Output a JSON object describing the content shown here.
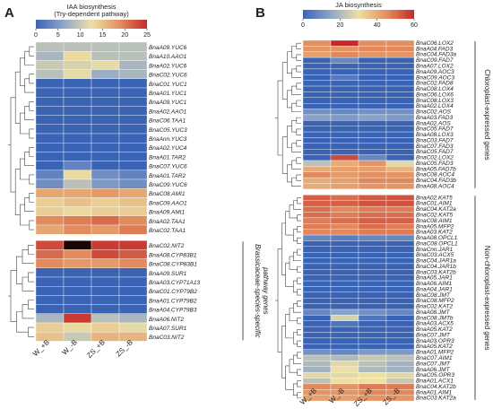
{
  "chart_data": [
    {
      "type": "heatmap",
      "panel_label": "A",
      "title": "IAA biosynthesis",
      "subtitle": "(Try-dependent pathway)",
      "columns": [
        "W_+B",
        "W_-B",
        "ZS_+B",
        "ZS_-B"
      ],
      "color_scale": {
        "min": 0,
        "max": 25,
        "ticks": [
          "0",
          "5",
          "10",
          "15",
          "20",
          "25"
        ],
        "colors": [
          "#3b63b4",
          "#8fa6c8",
          "#ece0a5",
          "#e39060",
          "#c42a2a"
        ]
      },
      "clusters": [
        {
          "side_label": "",
          "rows": [
            {
              "gene": "BnaA09.YUC6",
              "values": [
                9,
                9,
                9,
                9
              ]
            },
            {
              "gene": "BnaA10.AAO1",
              "values": [
                8,
                13,
                9,
                9
              ]
            },
            {
              "gene": "BnaA02.YUC6",
              "values": [
                10,
                11,
                12,
                8
              ]
            },
            {
              "gene": "BnaC02.YUC6",
              "values": [
                9,
                12,
                7,
                8
              ]
            },
            {
              "gene": "BnaC01.YUC1",
              "values": [
                0,
                0,
                0,
                0
              ]
            },
            {
              "gene": "BnaA01.YUC1",
              "values": [
                0,
                0,
                0,
                0
              ]
            },
            {
              "gene": "BnaA09.YUC1",
              "values": [
                0,
                0,
                0,
                0
              ]
            },
            {
              "gene": "BnaA02.AAO1",
              "values": [
                0,
                0,
                0,
                0
              ]
            },
            {
              "gene": "BnaC06.TAA1",
              "values": [
                0,
                0,
                0,
                0
              ]
            },
            {
              "gene": "BnaC05.YUC3",
              "values": [
                0,
                0,
                0,
                0
              ]
            },
            {
              "gene": "BnaAnn.YUC3",
              "values": [
                0,
                0,
                0,
                0
              ]
            },
            {
              "gene": "BnaA02.YUC4",
              "values": [
                0,
                0,
                0,
                0
              ]
            },
            {
              "gene": "BnaA01.TAR2",
              "values": [
                0,
                0,
                0,
                0
              ]
            },
            {
              "gene": "BnaC07.YUC6",
              "values": [
                0,
                3,
                0,
                0
              ]
            },
            {
              "gene": "BnaA01.TAR2",
              "values": [
                3,
                13,
                4,
                3
              ]
            },
            {
              "gene": "BnaC09.YUC6",
              "values": [
                4,
                9,
                5,
                4
              ]
            },
            {
              "gene": "BnaC08.AMI1",
              "values": [
                17,
                17,
                18,
                17
              ]
            },
            {
              "gene": "BnaC09.AAO1",
              "values": [
                14,
                15,
                14,
                15
              ]
            },
            {
              "gene": "BnaA09.AMI1",
              "values": [
                14,
                13,
                14,
                14
              ]
            },
            {
              "gene": "BnaA02.TAA1",
              "values": [
                19,
                20,
                21,
                19
              ]
            },
            {
              "gene": "BnaC02.TAA1",
              "values": [
                17,
                19,
                18,
                20
              ]
            }
          ]
        },
        {
          "side_label": "Brassicaceae-species-specific pathway genes",
          "rows": [
            {
              "gene": "BnaC02.NIT2",
              "values": [
                23,
                28,
                24,
                24
              ]
            },
            {
              "gene": "BnaA08.CYP83B1",
              "values": [
                21,
                19,
                23,
                22
              ]
            },
            {
              "gene": "BnaC08.CYP83B1",
              "values": [
                19,
                18,
                18,
                19
              ]
            },
            {
              "gene": "BnaA09.SUR1",
              "values": [
                0,
                0,
                0,
                0
              ]
            },
            {
              "gene": "BnaA03.CYP71A13",
              "values": [
                0,
                0,
                0,
                0
              ]
            },
            {
              "gene": "BnaC01.CYP79B2",
              "values": [
                0,
                0,
                0,
                0
              ]
            },
            {
              "gene": "BnaA01.CYP79B2",
              "values": [
                0,
                0,
                0,
                0
              ]
            },
            {
              "gene": "BnaA04.CYP79B3",
              "values": [
                0,
                0,
                0,
                0
              ]
            },
            {
              "gene": "BnaA06.NIT2",
              "values": [
                8,
                24,
                9,
                8
              ]
            },
            {
              "gene": "BnaA07.SUR1",
              "values": [
                14,
                13,
                14,
                12
              ]
            },
            {
              "gene": "BnaC03.NIT2",
              "values": [
                15,
                10,
                16,
                16
              ]
            }
          ]
        }
      ]
    },
    {
      "type": "heatmap",
      "panel_label": "B",
      "title": "JA biosynthesis",
      "columns": [
        "W_+B",
        "W_-B",
        "ZS_+B",
        "ZS_-B"
      ],
      "color_scale": {
        "min": 0,
        "max": 60,
        "ticks": [
          "0",
          "20",
          "40",
          "60"
        ],
        "colors": [
          "#3b63b4",
          "#8fa6c8",
          "#ece0a5",
          "#e39060",
          "#c42a2a"
        ]
      },
      "clusters": [
        {
          "side_label": "Chloroplast-expressed genes",
          "rows": [
            {
              "gene": "BnaC06.LOX2",
              "values": [
                45,
                60,
                45,
                45
              ]
            },
            {
              "gene": "BnaA04.FAD3",
              "values": [
                44,
                44,
                46,
                46
              ]
            },
            {
              "gene": "BnaC04.FAD3a",
              "values": [
                42,
                46,
                44,
                44
              ]
            },
            {
              "gene": "BnaC09.FAD7",
              "values": [
                0,
                8,
                0,
                0
              ]
            },
            {
              "gene": "BnaA07.LOX2",
              "values": [
                0,
                0,
                0,
                0
              ]
            },
            {
              "gene": "BnaA09.AOC3",
              "values": [
                0,
                0,
                0,
                0
              ]
            },
            {
              "gene": "BnaC09.AOC3",
              "values": [
                0,
                5,
                0,
                0
              ]
            },
            {
              "gene": "BnaC02.FAD8",
              "values": [
                0,
                0,
                0,
                0
              ]
            },
            {
              "gene": "BnaC08.LOX4",
              "values": [
                0,
                0,
                0,
                0
              ]
            },
            {
              "gene": "BnaC06.LOX6",
              "values": [
                0,
                0,
                0,
                0
              ]
            },
            {
              "gene": "BnaC08.LOX3",
              "values": [
                0,
                0,
                0,
                0
              ]
            },
            {
              "gene": "BnaA02.LOX4",
              "values": [
                0,
                0,
                0,
                0
              ]
            },
            {
              "gene": "BnaC02.AOS",
              "values": [
                10,
                8,
                10,
                10
              ]
            },
            {
              "gene": "BnaA03.FAD3",
              "values": [
                14,
                12,
                14,
                12
              ]
            },
            {
              "gene": "BnaA02.AOS",
              "values": [
                0,
                0,
                0,
                0
              ]
            },
            {
              "gene": "BnaC05.FAD7",
              "values": [
                0,
                0,
                0,
                0
              ]
            },
            {
              "gene": "BnaA08.LOX3",
              "values": [
                0,
                0,
                0,
                0
              ]
            },
            {
              "gene": "BnaC03.FAD7",
              "values": [
                0,
                0,
                0,
                0
              ]
            },
            {
              "gene": "BnaC07.FAD3",
              "values": [
                0,
                0,
                0,
                0
              ]
            },
            {
              "gene": "BnaC05.FAD7",
              "values": [
                0,
                0,
                0,
                0
              ]
            },
            {
              "gene": "BnaC02.LOX2",
              "values": [
                0,
                55,
                8,
                0
              ]
            },
            {
              "gene": "BnaC05.FAD3",
              "values": [
                22,
                40,
                44,
                28
              ]
            },
            {
              "gene": "BnaA05.FAD7b",
              "values": [
                40,
                42,
                42,
                38
              ]
            },
            {
              "gene": "BnaC08.AOC4",
              "values": [
                46,
                43,
                45,
                44
              ]
            },
            {
              "gene": "BnaC04.FAD3b",
              "values": [
                40,
                42,
                46,
                46
              ]
            },
            {
              "gene": "BnaA08.AOC4",
              "values": [
                40,
                42,
                44,
                44
              ]
            }
          ]
        },
        {
          "side_label": "Non-chloroplast-expressed genes",
          "rows": [
            {
              "gene": "BnaA02.KAT5",
              "values": [
                52,
                50,
                53,
                54
              ]
            },
            {
              "gene": "BnaC01.AIM1",
              "values": [
                52,
                52,
                54,
                54
              ]
            },
            {
              "gene": "BnaC04.KAT2a",
              "values": [
                50,
                46,
                48,
                48
              ]
            },
            {
              "gene": "BnaC02.KAT5",
              "values": [
                50,
                48,
                50,
                50
              ]
            },
            {
              "gene": "BnaC08.AIM1",
              "values": [
                48,
                50,
                52,
                52
              ]
            },
            {
              "gene": "BnaA05.MFP2",
              "values": [
                48,
                46,
                50,
                48
              ]
            },
            {
              "gene": "BnaA03.KAT2",
              "values": [
                46,
                46,
                48,
                48
              ]
            },
            {
              "gene": "BnaA08.OPCL1",
              "values": [
                8,
                6,
                8,
                8
              ]
            },
            {
              "gene": "BnaC08.OPCL1",
              "values": [
                0,
                0,
                0,
                0
              ]
            },
            {
              "gene": "BnaCnn.JAR1",
              "values": [
                0,
                0,
                0,
                0
              ]
            },
            {
              "gene": "BnaC03.ACX5",
              "values": [
                0,
                0,
                0,
                0
              ]
            },
            {
              "gene": "BnaC04.JAR1a",
              "values": [
                0,
                0,
                0,
                0
              ]
            },
            {
              "gene": "BnaC04.JAR1b",
              "values": [
                0,
                0,
                0,
                0
              ]
            },
            {
              "gene": "BnaC03.KAT2b",
              "values": [
                0,
                0,
                0,
                0
              ]
            },
            {
              "gene": "BnaA05.JAR1",
              "values": [
                0,
                0,
                0,
                0
              ]
            },
            {
              "gene": "BnaA06.AIM1",
              "values": [
                0,
                0,
                0,
                0
              ]
            },
            {
              "gene": "BnaA04.JAR1",
              "values": [
                0,
                0,
                0,
                0
              ]
            },
            {
              "gene": "BnaC08.JMT",
              "values": [
                0,
                0,
                0,
                0
              ]
            },
            {
              "gene": "BnaC08.MFP2",
              "values": [
                0,
                0,
                0,
                0
              ]
            },
            {
              "gene": "BnaC02.KAT2",
              "values": [
                0,
                0,
                0,
                0
              ]
            },
            {
              "gene": "BnaA08.JMT",
              "values": [
                8,
                14,
                10,
                8
              ]
            },
            {
              "gene": "BnaC08.JMTb",
              "values": [
                0,
                26,
                4,
                0
              ]
            },
            {
              "gene": "BnaA03.ACX5",
              "values": [
                0,
                4,
                0,
                0
              ]
            },
            {
              "gene": "BnaA05.KAT2",
              "values": [
                0,
                0,
                0,
                0
              ]
            },
            {
              "gene": "BnaC07.JMT",
              "values": [
                0,
                0,
                0,
                0
              ]
            },
            {
              "gene": "BnaA03.OPR3",
              "values": [
                0,
                0,
                0,
                0
              ]
            },
            {
              "gene": "BnaA05.KAT2",
              "values": [
                0,
                0,
                0,
                0
              ]
            },
            {
              "gene": "BnaA01.MFP2",
              "values": [
                10,
                8,
                12,
                12
              ]
            },
            {
              "gene": "BnaC07.AIM1",
              "values": [
                22,
                20,
                24,
                22
              ]
            },
            {
              "gene": "BnaC07.JMT",
              "values": [
                20,
                28,
                22,
                18
              ]
            },
            {
              "gene": "BnaA06.JMT",
              "values": [
                18,
                30,
                20,
                18
              ]
            },
            {
              "gene": "BnaC05.OPR3",
              "values": [
                28,
                28,
                30,
                28
              ]
            },
            {
              "gene": "BnaA01.ACX1",
              "values": [
                22,
                30,
                30,
                24
              ]
            },
            {
              "gene": "BnaC04.KAT2b",
              "values": [
                46,
                44,
                48,
                48
              ]
            },
            {
              "gene": "BnaA01.AIM1",
              "values": [
                44,
                44,
                46,
                46
              ]
            },
            {
              "gene": "BnaC03.KAT2a",
              "values": [
                42,
                42,
                44,
                44
              ]
            }
          ]
        }
      ]
    }
  ]
}
